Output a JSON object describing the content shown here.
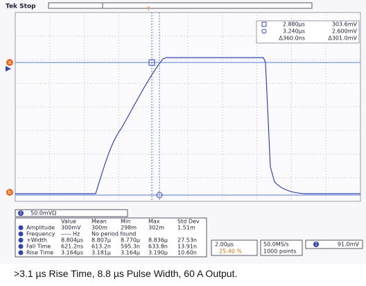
{
  "header": {
    "title": "Tek Stop"
  },
  "cursors": {
    "a_time": "2.880µs",
    "a_value": "303.6mV",
    "b_time": "3.240µs",
    "b_value": "2.600mV",
    "delta_time": "Δ360.0ns",
    "delta_value": "Δ301.0mV",
    "a_marker": "a",
    "b_marker": "b"
  },
  "channel": {
    "number": "1",
    "scale": "50.0mVΩ"
  },
  "measurements": {
    "columns": [
      "Value",
      "Mean",
      "Min",
      "Max",
      "Std Dev"
    ],
    "rows": [
      {
        "label": "Amplitude",
        "cells": [
          "300mV",
          "300m",
          "298m",
          "302m",
          "1.51m"
        ]
      },
      {
        "label": "Frequency",
        "cells": [
          "----- Hz",
          "No period found"
        ]
      },
      {
        "label": "+Width",
        "cells": [
          "8.804µs",
          "8.807µ",
          "8.770µ",
          "8.836µ",
          "27.53n"
        ]
      },
      {
        "label": "Fall Time",
        "cells": [
          "621.2ns",
          "613.2n",
          "595.3n",
          "633.8n",
          "13.91n"
        ]
      },
      {
        "label": "Rise Time",
        "cells": [
          "3.164µs",
          "3.181µ",
          "3.164µ",
          "3.190µ",
          "10.60n"
        ]
      }
    ]
  },
  "timebase": {
    "scale": "2.00µs",
    "position": "25.40 %"
  },
  "acquisition": {
    "rate": "50.0MS/s",
    "length": "1000 points"
  },
  "trigger": {
    "source": "1",
    "level": "91.0mV"
  },
  "caption": ">3.1 µs Rise Time, 8.8 µs Pulse Width, 60 A Output."
}
